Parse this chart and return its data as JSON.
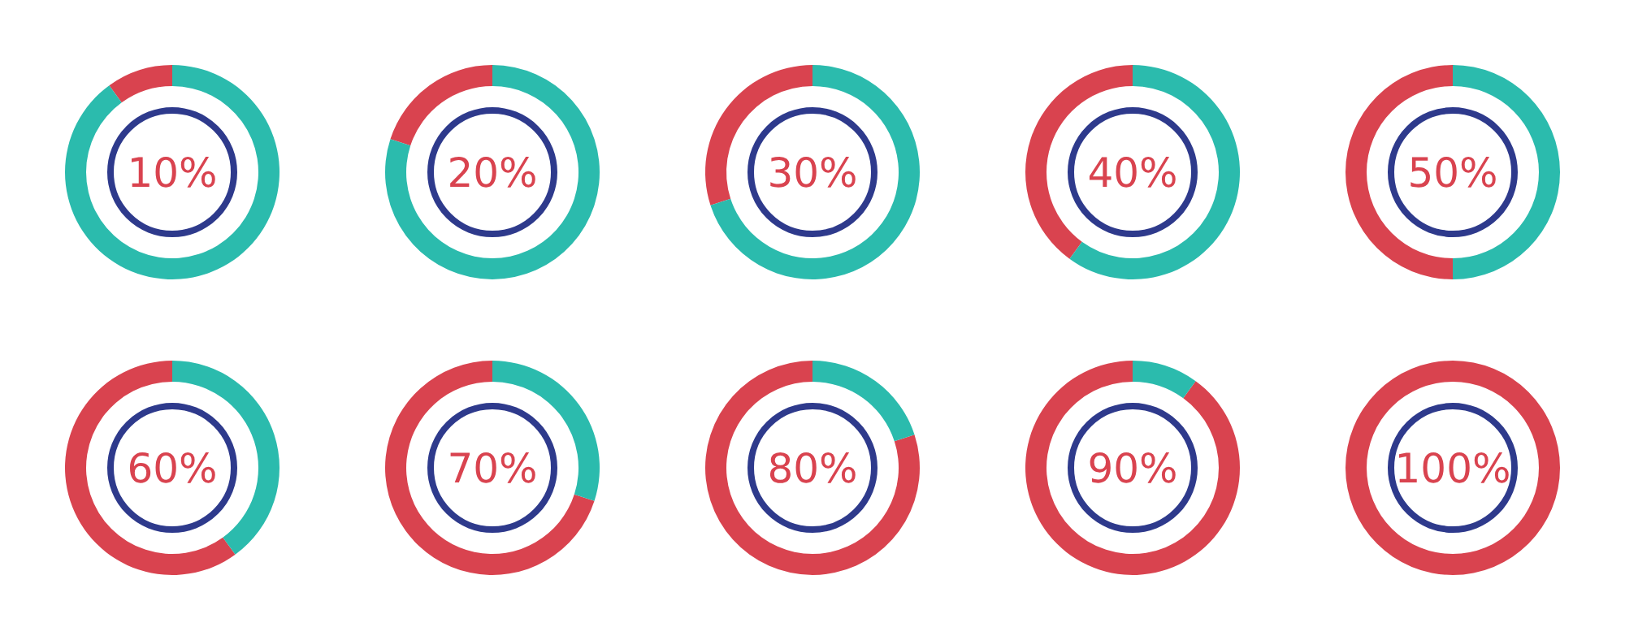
{
  "chart_data": [
    {
      "type": "donut",
      "categories": [
        null,
        null
      ],
      "values": [
        10,
        90
      ],
      "colors": [
        "#d9434f",
        "#2bbbad"
      ],
      "annotations": [
        "10%"
      ]
    },
    {
      "type": "donut",
      "categories": [
        null,
        null
      ],
      "values": [
        20,
        80
      ],
      "colors": [
        "#d9434f",
        "#2bbbad"
      ],
      "annotations": [
        "20%"
      ]
    },
    {
      "type": "donut",
      "categories": [
        null,
        null
      ],
      "values": [
        30,
        70
      ],
      "colors": [
        "#d9434f",
        "#2bbbad"
      ],
      "annotations": [
        "30%"
      ]
    },
    {
      "type": "donut",
      "categories": [
        null,
        null
      ],
      "values": [
        40,
        60
      ],
      "colors": [
        "#d9434f",
        "#2bbbad"
      ],
      "annotations": [
        "40%"
      ]
    },
    {
      "type": "donut",
      "categories": [
        null,
        null
      ],
      "values": [
        50,
        50
      ],
      "colors": [
        "#d9434f",
        "#2bbbad"
      ],
      "annotations": [
        "50%"
      ]
    },
    {
      "type": "donut",
      "categories": [
        null,
        null
      ],
      "values": [
        60,
        40
      ],
      "colors": [
        "#d9434f",
        "#2bbbad"
      ],
      "annotations": [
        "60%"
      ]
    },
    {
      "type": "donut",
      "categories": [
        null,
        null
      ],
      "values": [
        70,
        30
      ],
      "colors": [
        "#d9434f",
        "#2bbbad"
      ],
      "annotations": [
        "70%"
      ]
    },
    {
      "type": "donut",
      "categories": [
        null,
        null
      ],
      "values": [
        80,
        20
      ],
      "colors": [
        "#d9434f",
        "#2bbbad"
      ],
      "annotations": [
        "80%"
      ]
    },
    {
      "type": "donut",
      "categories": [
        null,
        null
      ],
      "values": [
        90,
        10
      ],
      "colors": [
        "#d9434f",
        "#2bbbad"
      ],
      "annotations": [
        "90%"
      ]
    },
    {
      "type": "donut",
      "categories": [
        null,
        null
      ],
      "values": [
        100,
        0
      ],
      "colors": [
        "#d9434f",
        "#2bbbad"
      ],
      "annotations": [
        "100%"
      ]
    }
  ]
}
